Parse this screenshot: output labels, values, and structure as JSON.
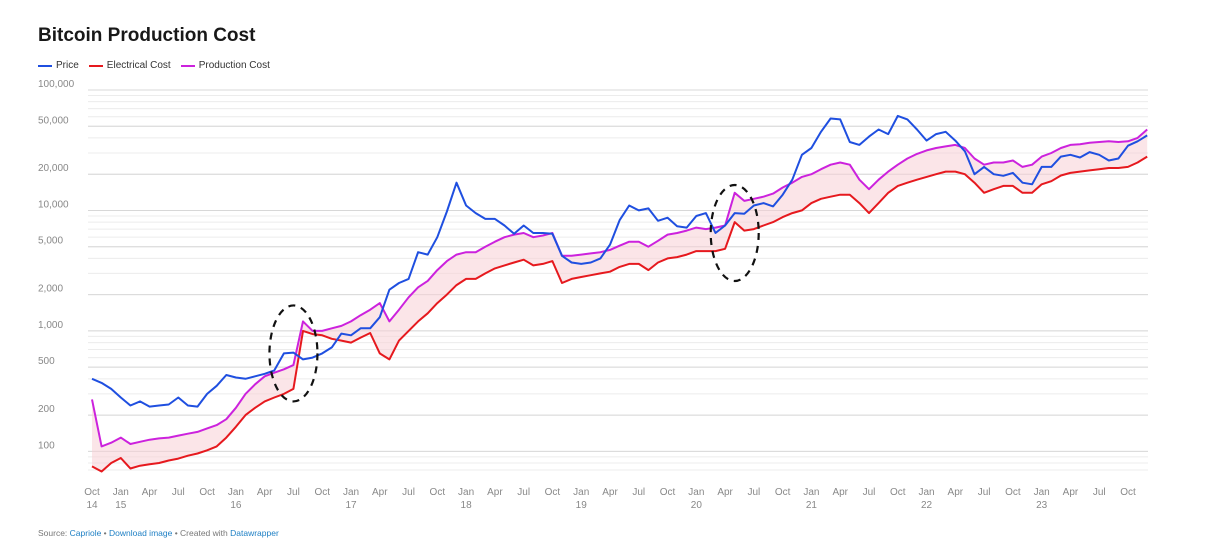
{
  "chart_data": {
    "type": "line",
    "title": "Bitcoin Production Cost",
    "y_scale": "log",
    "ylim": [
      70,
      100000
    ],
    "y_ticks": [
      "100,000",
      "50,000",
      "20,000",
      "10,000",
      "5,000",
      "2,000",
      "1,000",
      "500",
      "200",
      "100"
    ],
    "y_tick_values": [
      100000,
      50000,
      20000,
      10000,
      5000,
      2000,
      1000,
      500,
      200,
      100
    ],
    "x_tick_labels": [
      {
        "month": "Oct",
        "year": "14"
      },
      {
        "month": "Jan",
        "year": "15"
      },
      {
        "month": "Apr",
        "year": ""
      },
      {
        "month": "Jul",
        "year": ""
      },
      {
        "month": "Oct",
        "year": ""
      },
      {
        "month": "Jan",
        "year": "16"
      },
      {
        "month": "Apr",
        "year": ""
      },
      {
        "month": "Jul",
        "year": ""
      },
      {
        "month": "Oct",
        "year": ""
      },
      {
        "month": "Jan",
        "year": "17"
      },
      {
        "month": "Apr",
        "year": ""
      },
      {
        "month": "Jul",
        "year": ""
      },
      {
        "month": "Oct",
        "year": ""
      },
      {
        "month": "Jan",
        "year": "18"
      },
      {
        "month": "Apr",
        "year": ""
      },
      {
        "month": "Jul",
        "year": ""
      },
      {
        "month": "Oct",
        "year": ""
      },
      {
        "month": "Jan",
        "year": "19"
      },
      {
        "month": "Apr",
        "year": ""
      },
      {
        "month": "Jul",
        "year": ""
      },
      {
        "month": "Oct",
        "year": ""
      },
      {
        "month": "Jan",
        "year": "20"
      },
      {
        "month": "Apr",
        "year": ""
      },
      {
        "month": "Jul",
        "year": ""
      },
      {
        "month": "Oct",
        "year": ""
      },
      {
        "month": "Jan",
        "year": "21"
      },
      {
        "month": "Apr",
        "year": ""
      },
      {
        "month": "Jul",
        "year": ""
      },
      {
        "month": "Oct",
        "year": ""
      },
      {
        "month": "Jan",
        "year": "22"
      },
      {
        "month": "Apr",
        "year": ""
      },
      {
        "month": "Jul",
        "year": ""
      },
      {
        "month": "Oct",
        "year": ""
      },
      {
        "month": "Jan",
        "year": "23"
      },
      {
        "month": "Apr",
        "year": ""
      },
      {
        "month": "Jul",
        "year": ""
      },
      {
        "month": "Oct",
        "year": ""
      }
    ],
    "x_start": "2014-10",
    "series": [
      {
        "name": "Price",
        "color": "#1f4fe0",
        "x": [
          "2014-10",
          "2014-11",
          "2014-12",
          "2015-01",
          "2015-02",
          "2015-03",
          "2015-04",
          "2015-05",
          "2015-06",
          "2015-07",
          "2015-08",
          "2015-09",
          "2015-10",
          "2015-11",
          "2015-12",
          "2016-01",
          "2016-02",
          "2016-03",
          "2016-04",
          "2016-05",
          "2016-06",
          "2016-07",
          "2016-08",
          "2016-09",
          "2016-10",
          "2016-11",
          "2016-12",
          "2017-01",
          "2017-02",
          "2017-03",
          "2017-04",
          "2017-05",
          "2017-06",
          "2017-07",
          "2017-08",
          "2017-09",
          "2017-10",
          "2017-11",
          "2017-12",
          "2018-01",
          "2018-02",
          "2018-03",
          "2018-04",
          "2018-05",
          "2018-06",
          "2018-07",
          "2018-08",
          "2018-09",
          "2018-10",
          "2018-11",
          "2018-12",
          "2019-01",
          "2019-02",
          "2019-03",
          "2019-04",
          "2019-05",
          "2019-06",
          "2019-07",
          "2019-08",
          "2019-09",
          "2019-10",
          "2019-11",
          "2019-12",
          "2020-01",
          "2020-02",
          "2020-03",
          "2020-04",
          "2020-05",
          "2020-06",
          "2020-07",
          "2020-08",
          "2020-09",
          "2020-10",
          "2020-11",
          "2020-12",
          "2021-01",
          "2021-02",
          "2021-03",
          "2021-04",
          "2021-05",
          "2021-06",
          "2021-07",
          "2021-08",
          "2021-09",
          "2021-10",
          "2021-11",
          "2021-12",
          "2022-01",
          "2022-02",
          "2022-03",
          "2022-04",
          "2022-05",
          "2022-06",
          "2022-07",
          "2022-08",
          "2022-09",
          "2022-10",
          "2022-11",
          "2022-12",
          "2023-01",
          "2023-02",
          "2023-03",
          "2023-04",
          "2023-05",
          "2023-06",
          "2023-07",
          "2023-08",
          "2023-09",
          "2023-10",
          "2023-11",
          "2023-12"
        ],
        "y": [
          400,
          370,
          330,
          280,
          240,
          260,
          235,
          240,
          245,
          280,
          240,
          235,
          300,
          350,
          430,
          410,
          400,
          420,
          440,
          470,
          650,
          660,
          580,
          600,
          650,
          730,
          950,
          920,
          1050,
          1050,
          1300,
          2200,
          2500,
          2700,
          4500,
          4300,
          6000,
          9800,
          17000,
          11000,
          9500,
          8500,
          8500,
          7500,
          6400,
          7500,
          6500,
          6500,
          6400,
          4200,
          3700,
          3600,
          3700,
          4000,
          5200,
          8300,
          11000,
          10000,
          10400,
          8200,
          8700,
          7400,
          7200,
          9000,
          9500,
          6500,
          7500,
          9500,
          9400,
          11000,
          11500,
          10800,
          13500,
          18000,
          29000,
          33000,
          45000,
          58000,
          57000,
          37000,
          35000,
          41000,
          47000,
          43000,
          61000,
          57000,
          47000,
          38000,
          43000,
          45000,
          38000,
          31000,
          20000,
          23000,
          20000,
          19400,
          20500,
          17000,
          16500,
          23000,
          23000,
          28000,
          29000,
          27500,
          30500,
          29000,
          26000,
          27000,
          34500,
          37500,
          42000
        ],
        "labels": []
      },
      {
        "name": "Electrical Cost",
        "color": "#e6191e",
        "x": [
          "2014-10",
          "2014-11",
          "2014-12",
          "2015-01",
          "2015-02",
          "2015-03",
          "2015-04",
          "2015-05",
          "2015-06",
          "2015-07",
          "2015-08",
          "2015-09",
          "2015-10",
          "2015-11",
          "2015-12",
          "2016-01",
          "2016-02",
          "2016-03",
          "2016-04",
          "2016-05",
          "2016-06",
          "2016-07",
          "2016-08",
          "2016-09",
          "2016-10",
          "2016-11",
          "2016-12",
          "2017-01",
          "2017-02",
          "2017-03",
          "2017-04",
          "2017-05",
          "2017-06",
          "2017-07",
          "2017-08",
          "2017-09",
          "2017-10",
          "2017-11",
          "2017-12",
          "2018-01",
          "2018-02",
          "2018-03",
          "2018-04",
          "2018-05",
          "2018-06",
          "2018-07",
          "2018-08",
          "2018-09",
          "2018-10",
          "2018-11",
          "2018-12",
          "2019-01",
          "2019-02",
          "2019-03",
          "2019-04",
          "2019-05",
          "2019-06",
          "2019-07",
          "2019-08",
          "2019-09",
          "2019-10",
          "2019-11",
          "2019-12",
          "2020-01",
          "2020-02",
          "2020-03",
          "2020-04",
          "2020-05",
          "2020-06",
          "2020-07",
          "2020-08",
          "2020-09",
          "2020-10",
          "2020-11",
          "2020-12",
          "2021-01",
          "2021-02",
          "2021-03",
          "2021-04",
          "2021-05",
          "2021-06",
          "2021-07",
          "2021-08",
          "2021-09",
          "2021-10",
          "2021-11",
          "2021-12",
          "2022-01",
          "2022-02",
          "2022-03",
          "2022-04",
          "2022-05",
          "2022-06",
          "2022-07",
          "2022-08",
          "2022-09",
          "2022-10",
          "2022-11",
          "2022-12",
          "2023-01",
          "2023-02",
          "2023-03",
          "2023-04",
          "2023-05",
          "2023-06",
          "2023-07",
          "2023-08",
          "2023-09",
          "2023-10",
          "2023-11",
          "2023-12"
        ],
        "y": [
          75,
          68,
          80,
          88,
          72,
          76,
          78,
          80,
          84,
          87,
          92,
          96,
          102,
          110,
          130,
          160,
          200,
          230,
          260,
          280,
          300,
          330,
          1000,
          940,
          920,
          860,
          830,
          800,
          880,
          960,
          650,
          580,
          830,
          1000,
          1200,
          1400,
          1700,
          2000,
          2400,
          2700,
          2700,
          3000,
          3300,
          3500,
          3700,
          3900,
          3500,
          3600,
          3800,
          2500,
          2700,
          2800,
          2900,
          3000,
          3100,
          3400,
          3600,
          3600,
          3200,
          3700,
          4000,
          4100,
          4300,
          4600,
          4600,
          4600,
          4800,
          8000,
          6800,
          7000,
          7500,
          8000,
          8800,
          9500,
          10000,
          11500,
          12500,
          13000,
          13500,
          13500,
          11500,
          9500,
          11500,
          14000,
          16000,
          17000,
          18000,
          19000,
          20000,
          21000,
          21000,
          20000,
          17000,
          14000,
          15000,
          16000,
          16000,
          14000,
          14000,
          16500,
          17500,
          19500,
          20500,
          21000,
          21500,
          22000,
          22500,
          22500,
          23000,
          25000,
          28000
        ],
        "labels": []
      },
      {
        "name": "Production Cost",
        "color": "#cc22dd",
        "x": [
          "2014-10",
          "2014-11",
          "2014-12",
          "2015-01",
          "2015-02",
          "2015-03",
          "2015-04",
          "2015-05",
          "2015-06",
          "2015-07",
          "2015-08",
          "2015-09",
          "2015-10",
          "2015-11",
          "2015-12",
          "2016-01",
          "2016-02",
          "2016-03",
          "2016-04",
          "2016-05",
          "2016-06",
          "2016-07",
          "2016-08",
          "2016-09",
          "2016-10",
          "2016-11",
          "2016-12",
          "2017-01",
          "2017-02",
          "2017-03",
          "2017-04",
          "2017-05",
          "2017-06",
          "2017-07",
          "2017-08",
          "2017-09",
          "2017-10",
          "2017-11",
          "2017-12",
          "2018-01",
          "2018-02",
          "2018-03",
          "2018-04",
          "2018-05",
          "2018-06",
          "2018-07",
          "2018-08",
          "2018-09",
          "2018-10",
          "2018-11",
          "2018-12",
          "2019-01",
          "2019-02",
          "2019-03",
          "2019-04",
          "2019-05",
          "2019-06",
          "2019-07",
          "2019-08",
          "2019-09",
          "2019-10",
          "2019-11",
          "2019-12",
          "2020-01",
          "2020-02",
          "2020-03",
          "2020-04",
          "2020-05",
          "2020-06",
          "2020-07",
          "2020-08",
          "2020-09",
          "2020-10",
          "2020-11",
          "2020-12",
          "2021-01",
          "2021-02",
          "2021-03",
          "2021-04",
          "2021-05",
          "2021-06",
          "2021-07",
          "2021-08",
          "2021-09",
          "2021-10",
          "2021-11",
          "2021-12",
          "2022-01",
          "2022-02",
          "2022-03",
          "2022-04",
          "2022-05",
          "2022-06",
          "2022-07",
          "2022-08",
          "2022-09",
          "2022-10",
          "2022-11",
          "2022-12",
          "2023-01",
          "2023-02",
          "2023-03",
          "2023-04",
          "2023-05",
          "2023-06",
          "2023-07",
          "2023-08",
          "2023-09",
          "2023-10",
          "2023-11",
          "2023-12"
        ],
        "y": [
          270,
          110,
          118,
          130,
          115,
          120,
          125,
          128,
          130,
          135,
          140,
          145,
          155,
          165,
          185,
          230,
          300,
          360,
          420,
          450,
          480,
          520,
          1200,
          1000,
          1000,
          1050,
          1100,
          1200,
          1350,
          1500,
          1700,
          1200,
          1500,
          1900,
          2300,
          2600,
          3200,
          3800,
          4300,
          4500,
          4500,
          5000,
          5500,
          6000,
          6300,
          6500,
          6000,
          6200,
          6500,
          4200,
          4200,
          4300,
          4400,
          4500,
          4700,
          5100,
          5500,
          5500,
          5000,
          5600,
          6300,
          6500,
          6800,
          7200,
          7000,
          7200,
          7500,
          14000,
          12000,
          12500,
          13000,
          13800,
          15500,
          17000,
          19000,
          20000,
          22000,
          24000,
          25000,
          24000,
          18000,
          15000,
          18000,
          21000,
          24000,
          27000,
          29500,
          31500,
          33000,
          34000,
          35000,
          33000,
          27000,
          24000,
          25000,
          25000,
          26000,
          23000,
          24000,
          28000,
          30000,
          33000,
          35000,
          35500,
          36500,
          37000,
          37500,
          37000,
          37500,
          40000,
          47000
        ],
        "labels": []
      }
    ],
    "annotations": [
      {
        "type": "dashed-ellipse",
        "near": "2016-07"
      },
      {
        "type": "dashed-ellipse",
        "near": "2020-05"
      }
    ],
    "grid": true,
    "legend_position": "top-left"
  },
  "legend": {
    "items": [
      {
        "label": "Price",
        "color": "#1f4fe0"
      },
      {
        "label": "Electrical Cost",
        "color": "#e6191e"
      },
      {
        "label": "Production Cost",
        "color": "#cc22dd"
      }
    ]
  },
  "footer": {
    "prefix": "Source: ",
    "source_link": "Capriole",
    "sep1": " • ",
    "download_link": "Download image",
    "sep2": " • Created with ",
    "datawrapper_link": "Datawrapper"
  }
}
